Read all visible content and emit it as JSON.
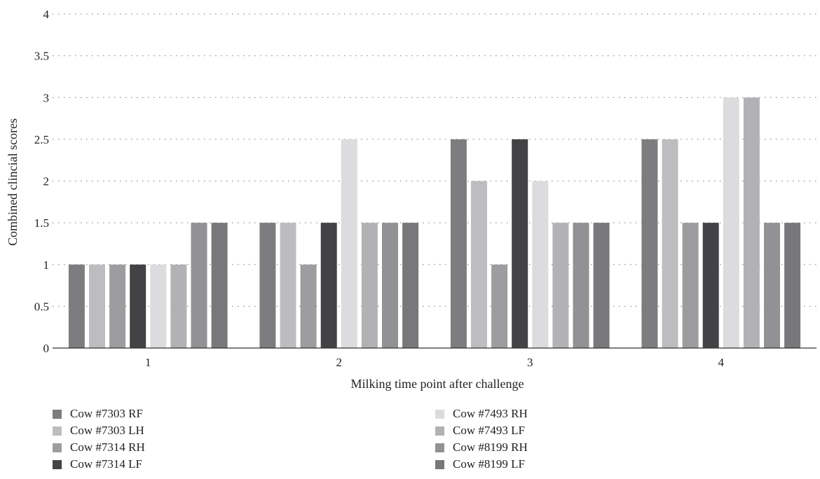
{
  "chart_data": {
    "type": "bar",
    "categories": [
      "1",
      "2",
      "3",
      "4"
    ],
    "xlabel": "Milking time point after challenge",
    "ylabel": "Combined clincial scores",
    "ylim": [
      0,
      4
    ],
    "yticks": [
      "0",
      "0.5",
      "1",
      "1.5",
      "2",
      "2.5",
      "3",
      "3.5",
      "4"
    ],
    "grid": "horizontal dotted",
    "legend_placement": "bottom",
    "series": [
      {
        "name": "Cow #7303 RF",
        "color": "#7d7d80",
        "values": [
          1,
          1.5,
          2.5,
          2.5
        ]
      },
      {
        "name": "Cow #7303 LH",
        "color": "#bdbdc0",
        "values": [
          1,
          1.5,
          2,
          2.5
        ]
      },
      {
        "name": "Cow #7314 RH",
        "color": "#9d9da0",
        "values": [
          1,
          1,
          1,
          1.5
        ]
      },
      {
        "name": "Cow #7314 LF",
        "color": "#434345",
        "values": [
          1,
          1.5,
          2.5,
          1.5
        ]
      },
      {
        "name": "Cow #7493 RH",
        "color": "#dcdcde",
        "values": [
          1,
          2.5,
          2,
          3
        ]
      },
      {
        "name": "Cow #7493 LF",
        "color": "#b2b2b5",
        "values": [
          1,
          1.5,
          1.5,
          3
        ]
      },
      {
        "name": "Cow #8199 RH",
        "color": "#929295",
        "values": [
          1.5,
          1.5,
          1.5,
          1.5
        ]
      },
      {
        "name": "Cow #8199 LF",
        "color": "#78787b",
        "values": [
          1.5,
          1.5,
          1.5,
          1.5
        ]
      }
    ]
  }
}
